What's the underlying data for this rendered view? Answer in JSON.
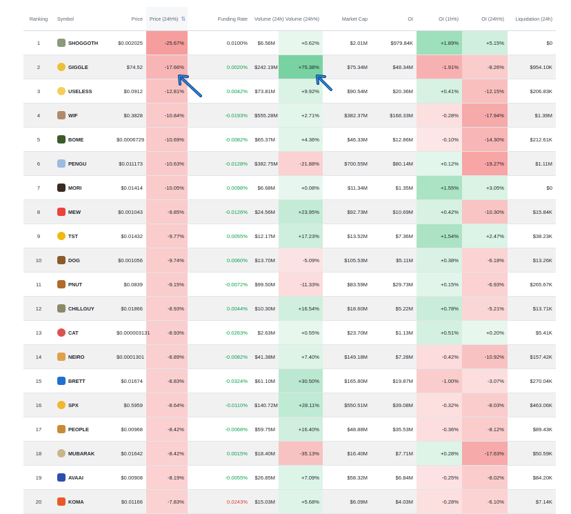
{
  "headers": {
    "ranking": "Ranking",
    "symbol": "Symbol",
    "price": "Price",
    "price_change": "Price (24h%)",
    "funding": "Funding Rate",
    "volume": "Volume (24h)",
    "volume_change": "Volume (24h%)",
    "market_cap": "Market Cap",
    "oi": "OI",
    "oi_1h": "OI (1h%)",
    "oi_24h": "OI (24h%)",
    "liquidation": "Liquidation (24h)"
  },
  "rows": [
    {
      "rank": "1",
      "symbol": "SHOGGOTH",
      "price": "$0.002025",
      "price_change": "-25.67%",
      "funding": "0.0100%",
      "volume": "$6.56M",
      "volume_change": "+0.62%",
      "market_cap": "$2.01M",
      "oi": "$979.84K",
      "oi_1h": "+1.89%",
      "oi_24h": "+5.15%",
      "liquidation": "$0"
    },
    {
      "rank": "2",
      "symbol": "GIGGLE",
      "price": "$74.52",
      "price_change": "-17.66%",
      "funding": "0.0020%",
      "volume": "$242.19M",
      "volume_change": "+75.38%",
      "market_cap": "$75.34M",
      "oi": "$48.34M",
      "oi_1h": "-1.91%",
      "oi_24h": "-8.26%",
      "liquidation": "$954.10K"
    },
    {
      "rank": "3",
      "symbol": "USELESS",
      "price": "$0.0912",
      "price_change": "-12.81%",
      "funding": "0.0042%",
      "volume": "$73.81M",
      "volume_change": "+9.92%",
      "market_cap": "$90.54M",
      "oi": "$20.36M",
      "oi_1h": "+0.41%",
      "oi_24h": "-12.15%",
      "liquidation": "$206.83K"
    },
    {
      "rank": "4",
      "symbol": "WIF",
      "price": "$0.3828",
      "price_change": "-10.84%",
      "funding": "-0.0193%",
      "volume": "$555.28M",
      "volume_change": "+2.71%",
      "market_cap": "$382.37M",
      "oi": "$168.33M",
      "oi_1h": "-0.28%",
      "oi_24h": "-17.94%",
      "liquidation": "$1.39M"
    },
    {
      "rank": "5",
      "symbol": "BOME",
      "price": "$0.0006729",
      "price_change": "-10.69%",
      "funding": "-0.0082%",
      "volume": "$65.37M",
      "volume_change": "+4.36%",
      "market_cap": "$46.33M",
      "oi": "$12.86M",
      "oi_1h": "-0.10%",
      "oi_24h": "-14.30%",
      "liquidation": "$212.61K"
    },
    {
      "rank": "6",
      "symbol": "PENGU",
      "price": "$0.011173",
      "price_change": "-10.63%",
      "funding": "-0.0128%",
      "volume": "$382.75M",
      "volume_change": "-21.88%",
      "market_cap": "$700.55M",
      "oi": "$80.14M",
      "oi_1h": "+0.12%",
      "oi_24h": "-19.27%",
      "liquidation": "$1.11M"
    },
    {
      "rank": "7",
      "symbol": "MORI",
      "price": "$0.01414",
      "price_change": "-10.05%",
      "funding": "0.0098%",
      "volume": "$6.68M",
      "volume_change": "+0.08%",
      "market_cap": "$11.34M",
      "oi": "$1.35M",
      "oi_1h": "+1.55%",
      "oi_24h": "+3.05%",
      "liquidation": "$0"
    },
    {
      "rank": "8",
      "symbol": "MEW",
      "price": "$0.001043",
      "price_change": "-9.85%",
      "funding": "-0.0126%",
      "volume": "$24.56M",
      "volume_change": "+23.95%",
      "market_cap": "$92.73M",
      "oi": "$10.69M",
      "oi_1h": "+0.42%",
      "oi_24h": "-10.30%",
      "liquidation": "$15.84K"
    },
    {
      "rank": "9",
      "symbol": "TST",
      "price": "$0.01432",
      "price_change": "-9.77%",
      "funding": "0.0055%",
      "volume": "$12.17M",
      "volume_change": "+17.23%",
      "market_cap": "$13.52M",
      "oi": "$7.36M",
      "oi_1h": "+1.54%",
      "oi_24h": "+2.47%",
      "liquidation": "$38.23K"
    },
    {
      "rank": "10",
      "symbol": "DOG",
      "price": "$0.001056",
      "price_change": "-9.74%",
      "funding": "0.0060%",
      "volume": "$13.70M",
      "volume_change": "-5.09%",
      "market_cap": "$105.53M",
      "oi": "$5.11M",
      "oi_1h": "+0.38%",
      "oi_24h": "-6.18%",
      "liquidation": "$13.26K"
    },
    {
      "rank": "11",
      "symbol": "PNUT",
      "price": "$0.0839",
      "price_change": "-9.15%",
      "funding": "-0.0072%",
      "volume": "$99.50M",
      "volume_change": "-11.33%",
      "market_cap": "$83.59M",
      "oi": "$29.73M",
      "oi_1h": "+0.15%",
      "oi_24h": "-6.93%",
      "liquidation": "$265.67K"
    },
    {
      "rank": "12",
      "symbol": "CHILLGUY",
      "price": "$0.01866",
      "price_change": "-8.93%",
      "funding": "0.0044%",
      "volume": "$10.30M",
      "volume_change": "+16.54%",
      "market_cap": "$18.60M",
      "oi": "$5.22M",
      "oi_1h": "+0.78%",
      "oi_24h": "-5.21%",
      "liquidation": "$13.71K"
    },
    {
      "rank": "13",
      "symbol": "CAT",
      "price": "$0.000003131",
      "price_change": "-8.93%",
      "funding": "-0.0263%",
      "volume": "$2.63M",
      "volume_change": "+0.55%",
      "market_cap": "$23.70M",
      "oi": "$1.13M",
      "oi_1h": "+0.51%",
      "oi_24h": "+0.20%",
      "liquidation": "$5.41K"
    },
    {
      "rank": "14",
      "symbol": "NEIRO",
      "price": "$0.0001301",
      "price_change": "-8.89%",
      "funding": "-0.0082%",
      "volume": "$41.38M",
      "volume_change": "+7.40%",
      "market_cap": "$149.18M",
      "oi": "$7.28M",
      "oi_1h": "-0.42%",
      "oi_24h": "-10.92%",
      "liquidation": "$157.42K"
    },
    {
      "rank": "15",
      "symbol": "BRETT",
      "price": "$0.01674",
      "price_change": "-8.83%",
      "funding": "-0.0324%",
      "volume": "$61.10M",
      "volume_change": "+30.50%",
      "market_cap": "$165.80M",
      "oi": "$19.87M",
      "oi_1h": "-1.00%",
      "oi_24h": "-3.07%",
      "liquidation": "$270.04K"
    },
    {
      "rank": "16",
      "symbol": "SPX",
      "price": "$0.5959",
      "price_change": "-8.64%",
      "funding": "-0.0110%",
      "volume": "$140.72M",
      "volume_change": "+28.11%",
      "market_cap": "$550.51M",
      "oi": "$39.08M",
      "oi_1h": "-0.32%",
      "oi_24h": "-8.03%",
      "liquidation": "$463.06K"
    },
    {
      "rank": "17",
      "symbol": "PEOPLE",
      "price": "$0.00968",
      "price_change": "-8.42%",
      "funding": "-0.0068%",
      "volume": "$59.75M",
      "volume_change": "+16.40%",
      "market_cap": "$48.88M",
      "oi": "$35.53M",
      "oi_1h": "-0.36%",
      "oi_24h": "-8.12%",
      "liquidation": "$89.43K"
    },
    {
      "rank": "18",
      "symbol": "MUBARAK",
      "price": "$0.01642",
      "price_change": "-8.42%",
      "funding": "0.0015%",
      "volume": "$18.40M",
      "volume_change": "-35.13%",
      "market_cap": "$16.40M",
      "oi": "$7.71M",
      "oi_1h": "+0.28%",
      "oi_24h": "-17.63%",
      "liquidation": "$50.59K"
    },
    {
      "rank": "19",
      "symbol": "AVAAI",
      "price": "$0.00908",
      "price_change": "-8.19%",
      "funding": "-0.0055%",
      "volume": "$26.85M",
      "volume_change": "+7.09%",
      "market_cap": "$58.32M",
      "oi": "$6.84M",
      "oi_1h": "-0.25%",
      "oi_24h": "-8.02%",
      "liquidation": "$84.20K"
    },
    {
      "rank": "20",
      "symbol": "KOMA",
      "price": "$0.01166",
      "price_change": "-7.83%",
      "funding": "0.0243%",
      "volume": "$15.03M",
      "volume_change": "+5.68%",
      "market_cap": "$6.09M",
      "oi": "$4.03M",
      "oi_1h": "-0.28%",
      "oi_24h": "-6.10%",
      "liquidation": "$7.14K"
    }
  ],
  "coin_icons": [
    {
      "symbol": "SHOGGOTH",
      "icon": "shoggoth-icon",
      "color": "#8a9a7b"
    },
    {
      "symbol": "GIGGLE",
      "icon": "giggle-icon",
      "color": "#e9c13b"
    },
    {
      "symbol": "USELESS",
      "icon": "useless-icon",
      "color": "#f3cf5a"
    },
    {
      "symbol": "WIF",
      "icon": "wif-icon",
      "color": "#b08a6a"
    },
    {
      "symbol": "BOME",
      "icon": "bome-icon",
      "color": "#3b5a2a"
    },
    {
      "symbol": "PENGU",
      "icon": "pengu-icon",
      "color": "#9bbbe0"
    },
    {
      "symbol": "MORI",
      "icon": "mori-icon",
      "color": "#3a2a22"
    },
    {
      "symbol": "MEW",
      "icon": "mew-icon",
      "color": "#e8453c"
    },
    {
      "symbol": "TST",
      "icon": "tst-icon",
      "color": "#f0b90b"
    },
    {
      "symbol": "DOG",
      "icon": "dog-icon",
      "color": "#8b5a2b"
    },
    {
      "symbol": "PNUT",
      "icon": "pnut-icon",
      "color": "#b06a2a"
    },
    {
      "symbol": "CHILLGUY",
      "icon": "chillguy-icon",
      "color": "#8a8a6a"
    },
    {
      "symbol": "CAT",
      "icon": "cat-icon",
      "color": "#d9534f"
    },
    {
      "symbol": "NEIRO",
      "icon": "neiro-icon",
      "color": "#e0a04a"
    },
    {
      "symbol": "BRETT",
      "icon": "brett-icon",
      "color": "#1f6fd1"
    },
    {
      "symbol": "SPX",
      "icon": "spx-icon",
      "color": "#f2b72e"
    },
    {
      "symbol": "PEOPLE",
      "icon": "people-icon",
      "color": "#c98b3a"
    },
    {
      "symbol": "MUBARAK",
      "icon": "mubarak-icon",
      "color": "#c8b68a"
    },
    {
      "symbol": "AVAAI",
      "icon": "avaai-icon",
      "color": "#2a4fb3"
    },
    {
      "symbol": "KOMA",
      "icon": "koma-icon",
      "color": "#e85a2a"
    }
  ],
  "sort_icon": "sort-arrows-icon",
  "annotation_arrows": [
    "arrow-pointing-price-change-giggle",
    "arrow-pointing-volume-change-giggle"
  ],
  "colors": {
    "negative_text": "#e03a3a",
    "positive_text": "#0aa34f",
    "arrow": "#2a8be0",
    "arrow_outline": "#0d3b7a"
  }
}
